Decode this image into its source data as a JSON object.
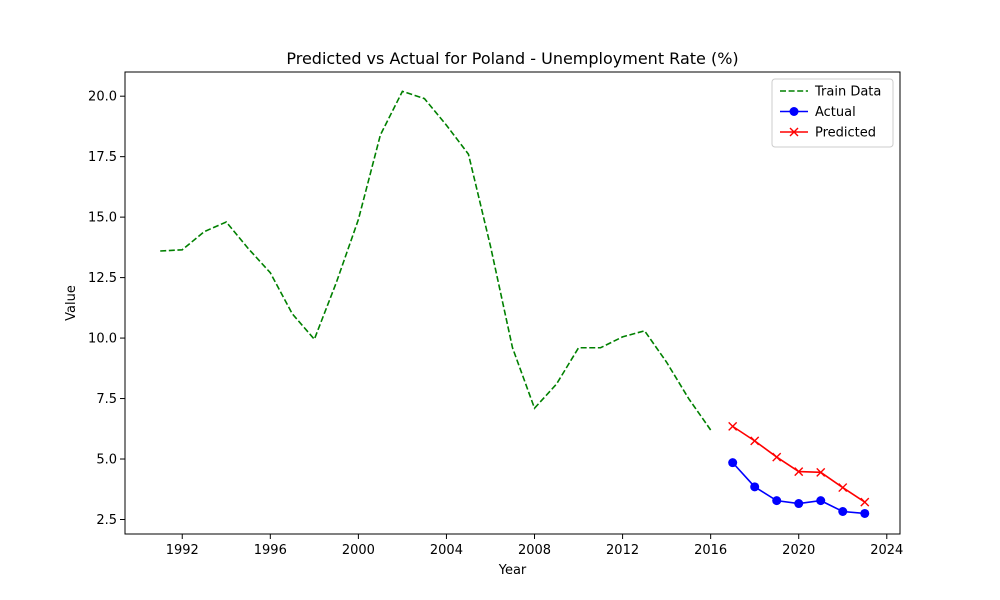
{
  "chart_data": {
    "type": "line",
    "title": "Predicted vs Actual for Poland - Unemployment Rate (%)",
    "xlabel": "Year",
    "ylabel": "Value",
    "xlim": [
      1989.4,
      2024.6
    ],
    "ylim": [
      1.9,
      21.0
    ],
    "xticks": [
      1992,
      1996,
      2000,
      2004,
      2008,
      2012,
      2016,
      2020,
      2024
    ],
    "yticks": [
      2.5,
      5.0,
      7.5,
      10.0,
      12.5,
      15.0,
      17.5,
      20.0
    ],
    "ytick_labels": [
      "2.5",
      "5.0",
      "7.5",
      "10.0",
      "12.5",
      "15.0",
      "17.5",
      "20.0"
    ],
    "grid": false,
    "legend_position": "top-right",
    "series": [
      {
        "name": "Train Data",
        "color": "#008000",
        "style": "dashed",
        "marker": "none",
        "x": [
          1991,
          1992,
          1993,
          1994,
          1995,
          1996,
          1997,
          1998,
          1999,
          2000,
          2001,
          2002,
          2003,
          2004,
          2005,
          2006,
          2007,
          2008,
          2009,
          2010,
          2011,
          2012,
          2013,
          2014,
          2015,
          2016
        ],
        "y": [
          13.6,
          13.65,
          14.4,
          14.8,
          13.7,
          12.7,
          11.0,
          9.95,
          12.3,
          14.9,
          18.4,
          20.2,
          19.9,
          18.8,
          17.6,
          13.8,
          9.6,
          7.1,
          8.1,
          9.6,
          9.6,
          10.05,
          10.3,
          9.0,
          7.5,
          6.2
        ]
      },
      {
        "name": "Actual",
        "color": "#0000ff",
        "style": "solid",
        "marker": "circle",
        "x": [
          2017,
          2018,
          2019,
          2020,
          2021,
          2022,
          2023
        ],
        "y": [
          4.85,
          3.85,
          3.28,
          3.16,
          3.28,
          2.83,
          2.75
        ]
      },
      {
        "name": "Predicted",
        "color": "#ff0000",
        "style": "solid",
        "marker": "x",
        "x": [
          2017,
          2018,
          2019,
          2020,
          2021,
          2022,
          2023
        ],
        "y": [
          6.35,
          5.75,
          5.08,
          4.48,
          4.45,
          3.82,
          3.22
        ]
      }
    ]
  }
}
